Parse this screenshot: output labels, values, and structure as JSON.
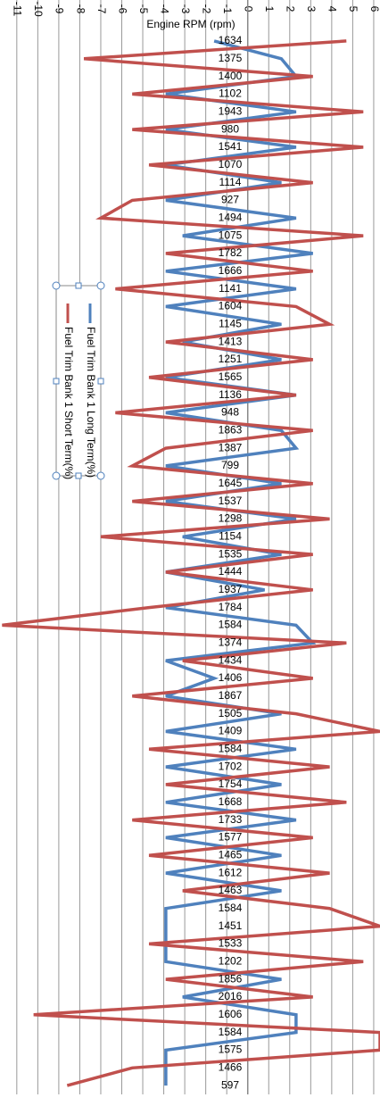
{
  "chart_data": {
    "type": "line",
    "orientation": "rotated",
    "x_label": "Engine RPM (rpm)",
    "categories": [
      "1634",
      "1375",
      "1400",
      "1102",
      "1943",
      "980",
      "1541",
      "1070",
      "1114",
      "927",
      "1494",
      "1075",
      "1782",
      "1666",
      "1141",
      "1604",
      "1145",
      "1413",
      "1251",
      "1565",
      "1136",
      "948",
      "1863",
      "1387",
      "799",
      "1645",
      "1537",
      "1298",
      "1154",
      "1535",
      "1444",
      "1937",
      "1784",
      "1584",
      "1374",
      "1434",
      "1406",
      "1867",
      "1505",
      "1409",
      "1584",
      "1702",
      "1754",
      "1668",
      "1733",
      "1577",
      "1465",
      "1612",
      "1463",
      "1584",
      "1451",
      "1533",
      "1202",
      "1856",
      "2016",
      "1606",
      "1584",
      "1575",
      "1466",
      "597"
    ],
    "series": [
      {
        "name": "Fuel Trim Bank 1 Long Term(%)",
        "color": "#4f81bd",
        "values": [
          -1.6,
          1.6,
          2.3,
          -3.9,
          2.3,
          -3.9,
          2.3,
          -3.9,
          1.6,
          -3.9,
          2.3,
          -3.1,
          3.1,
          -3.9,
          2.3,
          -3.9,
          1.6,
          -3.1,
          1.6,
          -3.9,
          2.3,
          -3.9,
          1.6,
          2.3,
          -3.9,
          1.6,
          -3.9,
          2.3,
          -3.1,
          1.6,
          -3.9,
          0.8,
          -3.9,
          2.3,
          3.1,
          -3.9,
          -1.6,
          -3.9,
          1.6,
          -3.9,
          2.3,
          -3.9,
          1.6,
          -3.9,
          2.3,
          -3.9,
          1.6,
          -3.9,
          1.6,
          -3.9,
          -3.9,
          -3.9,
          -3.9,
          1.6,
          -3.1,
          2.3,
          2.3,
          -3.9,
          -3.9,
          -3.9
        ]
      },
      {
        "name": "Fuel Trim Bank 1 Short Term(%)",
        "color": "#c0504d",
        "values": [
          4.7,
          -7.8,
          3.1,
          -5.5,
          5.5,
          -5.5,
          5.5,
          -4.7,
          3.1,
          -5.5,
          -7.0,
          5.5,
          -3.9,
          3.1,
          -6.3,
          2.3,
          3.9,
          -3.9,
          3.1,
          -4.7,
          2.3,
          -6.3,
          3.1,
          -3.9,
          -5.5,
          3.1,
          -5.5,
          3.9,
          -7.0,
          3.1,
          -3.9,
          3.1,
          -4.7,
          -11.7,
          4.7,
          -3.1,
          3.1,
          -5.5,
          2.3,
          6.3,
          -4.7,
          3.9,
          -3.9,
          4.7,
          -5.5,
          3.1,
          -4.7,
          3.9,
          -3.1,
          3.9,
          6.3,
          -4.7,
          5.5,
          -3.9,
          3.1,
          -10.2,
          6.3,
          6.3,
          -5.5,
          -8.6
        ]
      }
    ],
    "ylim": [
      -11.8,
      6.3
    ],
    "yticks": [
      -11,
      -10,
      -9,
      -8,
      -7,
      -6,
      -5,
      -4,
      -3,
      -2,
      -1,
      0,
      1,
      2,
      3,
      4,
      5,
      6
    ],
    "grid": true
  }
}
